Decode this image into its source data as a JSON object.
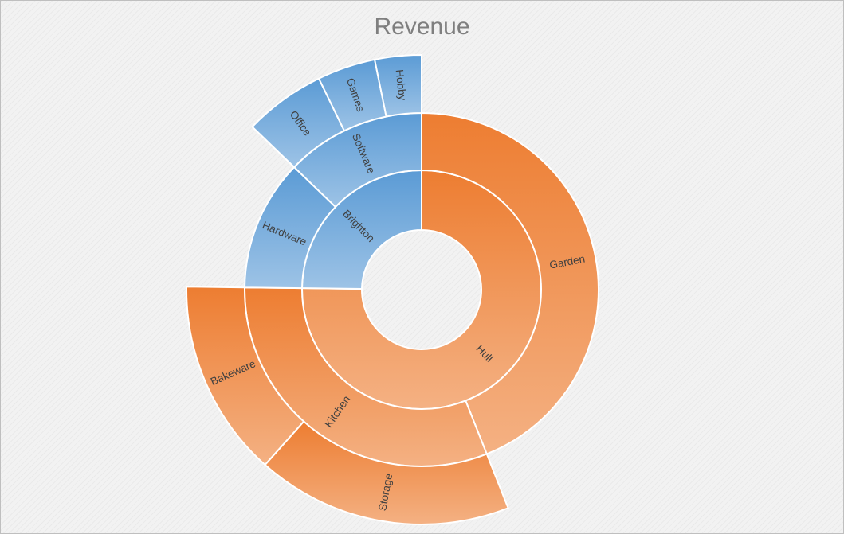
{
  "chart_data": {
    "type": "sunburst",
    "title": "Revenue",
    "colors": {
      "Hull": {
        "base": "#ed7d31",
        "light": "#f4b183"
      },
      "Brighton": {
        "base": "#5b9bd5",
        "light": "#9dc3e6"
      }
    },
    "hierarchy": [
      {
        "name": "Hull",
        "value": 94,
        "children": [
          {
            "name": "Garden",
            "value": 55,
            "children": []
          },
          {
            "name": "Kitchen",
            "value": 39,
            "children": [
              {
                "name": "Storage",
                "value": 22
              },
              {
                "name": "Bakeware",
                "value": 17
              }
            ]
          }
        ]
      },
      {
        "name": "Brighton",
        "value": 31,
        "children": [
          {
            "name": "Hardware",
            "value": 15,
            "children": []
          },
          {
            "name": "Software",
            "value": 16,
            "children": [
              {
                "name": "Office",
                "value": 7
              },
              {
                "name": "Games",
                "value": 5
              },
              {
                "name": "Hobby",
                "value": 4
              }
            ]
          }
        ]
      }
    ]
  }
}
